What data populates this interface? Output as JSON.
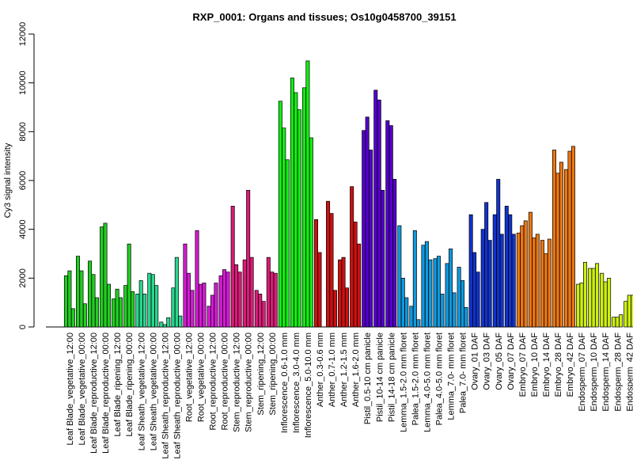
{
  "chart_data": {
    "type": "bar",
    "title": "RXP_0001: Organs and tissues; Os10g0458700_39151",
    "xlabel": "",
    "ylabel": "Cy3 signal intensity",
    "ylim": [
      0,
      12000
    ],
    "yticks": [
      0,
      2000,
      4000,
      6000,
      8000,
      10000,
      12000
    ],
    "grid": false,
    "legend": "none",
    "groups": [
      {
        "label": "Leaf Blade_vegetative_12:00",
        "color": "#22cc22",
        "values": [
          2100,
          2300,
          750
        ]
      },
      {
        "label": "Leaf Blade_vegetative_00:00",
        "color": "#22cc22",
        "values": [
          2900,
          2300,
          950
        ]
      },
      {
        "label": "Leaf Blade_reproductive_12:00",
        "color": "#22cc22",
        "values": [
          2700,
          2150,
          1200
        ]
      },
      {
        "label": "Leaf Blade_reproductive_00:00",
        "color": "#22cc22",
        "values": [
          4100,
          4250,
          1750
        ]
      },
      {
        "label": "Leaf Blade_ripening_12:00",
        "color": "#22cc22",
        "values": [
          1150,
          1550,
          1200
        ]
      },
      {
        "label": "Leaf Blade_ripening_00:00",
        "color": "#22cc22",
        "values": [
          1700,
          3400,
          1450
        ]
      },
      {
        "label": "Leaf Sheath_vegetative_12:00",
        "color": "#2ad68e",
        "values": [
          1350,
          1900,
          1350
        ]
      },
      {
        "label": "Leaf Sheath_vegetative_00:00",
        "color": "#2ad68e",
        "values": [
          2200,
          2150,
          1700
        ]
      },
      {
        "label": "Leaf Sheath_reproductive_12:00",
        "color": "#2ad68e",
        "values": [
          200,
          100,
          380
        ]
      },
      {
        "label": "Leaf Sheath_reproductive_00:00",
        "color": "#2ad68e",
        "values": [
          1600,
          2850,
          450
        ]
      },
      {
        "label": "Root_vegetative_12:00",
        "color": "#d61ad6",
        "values": [
          3400,
          2200,
          1500
        ]
      },
      {
        "label": "Root_vegetative_00:00",
        "color": "#d61ad6",
        "values": [
          3950,
          1750,
          1800
        ]
      },
      {
        "label": "Root_reproductive_12:00",
        "color": "#d61ad6",
        "values": [
          850,
          1300,
          1800
        ]
      },
      {
        "label": "Root_reproductive_00:00",
        "color": "#d61ad6",
        "values": [
          2100,
          2350,
          2250
        ]
      },
      {
        "label": "Stem_reproductive_12:00",
        "color": "#dc1a78",
        "values": [
          4950,
          2550,
          2250
        ]
      },
      {
        "label": "Stem_reproductive_00:00",
        "color": "#dc1a78",
        "values": [
          2750,
          5600,
          2850
        ]
      },
      {
        "label": "Stem_ripening_12:00",
        "color": "#dc1a78",
        "values": [
          1500,
          1350,
          1050
        ]
      },
      {
        "label": "Stem_ripening_00:00",
        "color": "#dc1a78",
        "values": [
          2850,
          2250,
          2200
        ]
      },
      {
        "label": "Inflorescence_0.6-1.0 mm",
        "color": "#11ee11",
        "values": [
          9250,
          8150,
          6850
        ]
      },
      {
        "label": "Inflorescence_3.0-4.0 mm",
        "color": "#11ee11",
        "values": [
          10200,
          9600,
          8900
        ]
      },
      {
        "label": "Inflorescence_5.0-10.0 mm",
        "color": "#11ee11",
        "values": [
          9800,
          10900,
          7750
        ]
      },
      {
        "label": "Anther_0.3-0.6 mm",
        "color": "#cc1111",
        "values": [
          4400,
          3050,
          0
        ]
      },
      {
        "label": "Anther_0.7-1.0 mm",
        "color": "#cc1111",
        "values": [
          5150,
          4650,
          1500
        ]
      },
      {
        "label": "Anther_1.2-1.5 mm",
        "color": "#cc1111",
        "values": [
          2750,
          2850,
          1600
        ]
      },
      {
        "label": "Anther_1.6-2.0 mm",
        "color": "#cc1111",
        "values": [
          5750,
          4300,
          3400
        ]
      },
      {
        "label": "Pistil_0.5-10 cm panicle",
        "color": "#5500cc",
        "values": [
          8050,
          8600,
          7250
        ]
      },
      {
        "label": "Pistil_10-14 cm panicle",
        "color": "#5500cc",
        "values": [
          9700,
          9300,
          5600
        ]
      },
      {
        "label": "Pistil_14-18 cm panicle",
        "color": "#5500cc",
        "values": [
          8450,
          8250,
          6050
        ]
      },
      {
        "label": "Lemma_1.5-2.0 mm floret",
        "color": "#1199dd",
        "values": [
          4150,
          2000,
          1200
        ]
      },
      {
        "label": "Palea_1.5-2.0 mm floret",
        "color": "#1199dd",
        "values": [
          850,
          3950,
          300
        ]
      },
      {
        "label": "Lemma_4.0-5.0 mm floret",
        "color": "#1199dd",
        "values": [
          3350,
          3500,
          2750
        ]
      },
      {
        "label": "Palea_4.0-5.0 mm floret",
        "color": "#1199dd",
        "values": [
          2800,
          2900,
          1350
        ]
      },
      {
        "label": "Lemma_7.0- mm floret",
        "color": "#1199dd",
        "values": [
          2600,
          3200,
          1400
        ]
      },
      {
        "label": "Palea_7.0- mm floret",
        "color": "#1199dd",
        "values": [
          2450,
          1900,
          800
        ]
      },
      {
        "label": "Ovary_01 DAF",
        "color": "#1133cc",
        "values": [
          4600,
          3050,
          2250
        ]
      },
      {
        "label": "Ovary_03 DAF",
        "color": "#1133cc",
        "values": [
          4000,
          5100,
          3550
        ]
      },
      {
        "label": "Ovary_05 DAF",
        "color": "#1133cc",
        "values": [
          4600,
          6050,
          3800
        ]
      },
      {
        "label": "Ovary_07 DAF",
        "color": "#1133cc",
        "values": [
          4950,
          4600,
          3800
        ]
      },
      {
        "label": "Embryo_07 DAF",
        "color": "#ee7711",
        "values": [
          3850,
          4150,
          4350
        ]
      },
      {
        "label": "Embryo_10 DAF",
        "color": "#ee7711",
        "values": [
          4700,
          3650,
          3800
        ]
      },
      {
        "label": "Embryo_14 DAF",
        "color": "#ee7711",
        "values": [
          3550,
          3000,
          3600
        ]
      },
      {
        "label": "Embryo_28 DAF",
        "color": "#ee7711",
        "values": [
          7250,
          6300,
          6750
        ]
      },
      {
        "label": "Embryo_42 DAF",
        "color": "#ee7711",
        "values": [
          6450,
          7200,
          7400
        ]
      },
      {
        "label": "Endosperm_07 DAF",
        "color": "#ccee11",
        "values": [
          1750,
          1800,
          2650
        ]
      },
      {
        "label": "Endosperm_10 DAF",
        "color": "#ccee11",
        "values": [
          2400,
          2400,
          2600
        ]
      },
      {
        "label": "Endosperm_14 DAF",
        "color": "#ccee11",
        "values": [
          2200,
          1850,
          2000
        ]
      },
      {
        "label": "Endosperm_28 DAF",
        "color": "#ccee11",
        "values": [
          400,
          400,
          500
        ]
      },
      {
        "label": "Endosperm_42 DAF",
        "color": "#ccee11",
        "values": [
          1050,
          1300,
          1300
        ]
      }
    ]
  }
}
